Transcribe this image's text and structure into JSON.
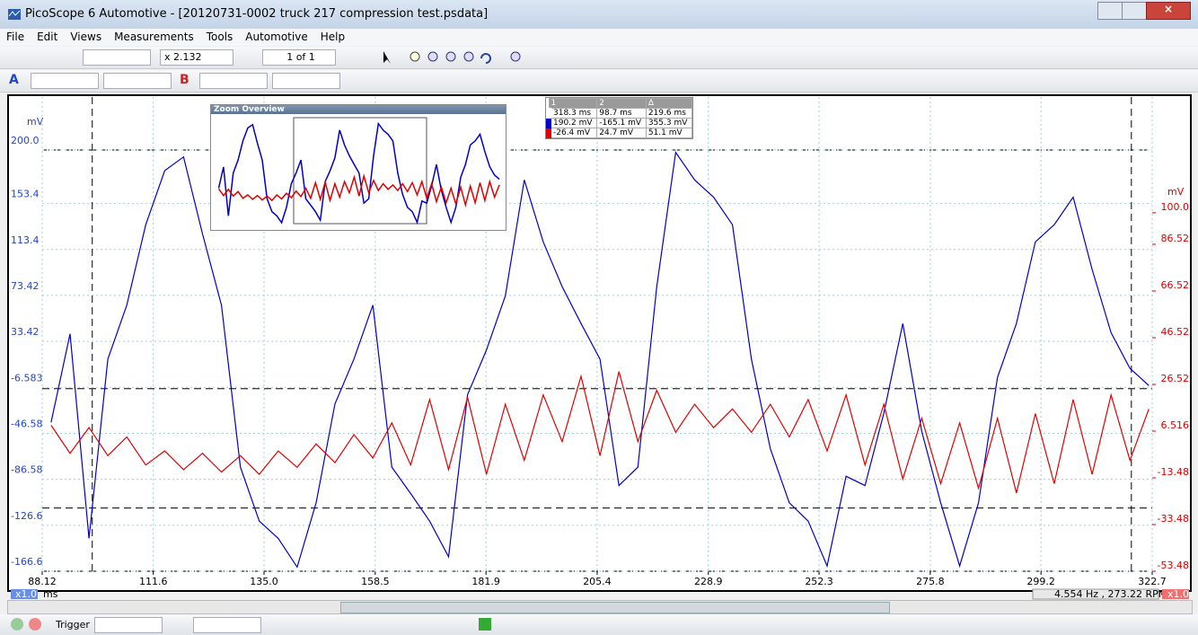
{
  "window": {
    "title": "PicoScope 6 Automotive - [20120731-0002 truck 217 compression test.psdata]"
  },
  "menu": [
    "File",
    "Edit",
    "Views",
    "Measurements",
    "Tools",
    "Automotive",
    "Help"
  ],
  "toolbar": {
    "zoom": "x 2.132",
    "page": "1 of 1"
  },
  "zoom_overview": {
    "title": "Zoom Overview"
  },
  "measurements": {
    "headers": [
      "1",
      "2",
      "Δ"
    ],
    "rows": [
      [
        "318.3 ms",
        "98.7 ms",
        "219.6 ms"
      ],
      [
        "190.2 mV",
        "-165.1 mV",
        "355.3 mV"
      ],
      [
        "-26.4 mV",
        "24.7 mV",
        "51.1 mV"
      ]
    ]
  },
  "status": {
    "frequency": "4.554 Hz , 273.22 RPM",
    "trigger": "Trigger"
  },
  "chart_data": {
    "type": "line",
    "xlabel": "ms",
    "ylabel": "mV",
    "y2label": "mV",
    "x_scale": "x1.0",
    "y2_scale": "x1.0",
    "xlim": [
      88.12,
      322.7
    ],
    "xticks": [
      88.12,
      111.6,
      {
        "value": 135,
        "label": "135.0"
      },
      158.5,
      181.9,
      205.4,
      228.9,
      252.3,
      275.8,
      299.2,
      322.7
    ],
    "ylim": [
      -166.6,
      200
    ],
    "yticks": [
      -166.6,
      -126.6,
      -86.58,
      -46.58,
      -6.583,
      33.42,
      73.42,
      113.4,
      153.4,
      {
        "value": 200,
        "label": "200.0"
      }
    ],
    "y2lim": [
      -53.48,
      126.9
    ],
    "y2ticks": [
      -53.48,
      -33.48,
      -13.48,
      6.516,
      26.52,
      46.52,
      66.52,
      86.52,
      {
        "value": 100,
        "label": "100.0"
      }
    ],
    "grid": true,
    "cursors": {
      "x": [
        98.7,
        318.3
      ],
      "y2": [
        24.7,
        -26.4
      ]
    },
    "x": [
      90,
      94,
      98,
      102,
      106,
      110,
      114,
      118,
      122,
      126,
      130,
      134,
      138,
      142,
      146,
      150,
      154,
      158,
      162,
      166,
      170,
      174,
      178,
      182,
      186,
      190,
      194,
      198,
      202,
      206,
      210,
      214,
      218,
      222,
      226,
      230,
      234,
      238,
      242,
      246,
      250,
      254,
      258,
      262,
      266,
      270,
      274,
      278,
      282,
      286,
      290,
      294,
      298,
      302,
      306,
      310,
      314,
      318,
      322
    ],
    "series": [
      {
        "name": "A",
        "color": "#0000cc",
        "values": [
          -37,
          40,
          -138,
          18,
          65,
          135,
          182,
          194,
          127,
          65,
          -76,
          -123,
          -138,
          -163,
          -107,
          -21,
          18,
          65,
          -76,
          -99,
          -123,
          -154,
          -13,
          26,
          73,
          174,
          120,
          81,
          49,
          18,
          -92,
          -76,
          81,
          198,
          174,
          159,
          135,
          18,
          -60,
          -107,
          -123,
          -162,
          -84,
          -92,
          -29,
          49,
          -45,
          -107,
          -162,
          -107,
          2,
          49,
          120,
          135,
          159,
          96,
          41,
          10,
          -5
        ]
      },
      {
        "name": "B",
        "color": "#e00000",
        "axis": "y2",
        "values": [
          9,
          -3,
          8,
          -4,
          4,
          -8,
          -2,
          -10,
          -3,
          -11,
          -4,
          -12,
          -2,
          -9,
          1,
          -7,
          5,
          -5,
          10,
          -8,
          20,
          -10,
          21,
          -12,
          18,
          -6,
          22,
          2,
          30,
          -4,
          32,
          2,
          24,
          6,
          18,
          8,
          16,
          6,
          18,
          4,
          20,
          -2,
          22,
          -8,
          18,
          -14,
          12,
          -16,
          10,
          -18,
          12,
          -20,
          14,
          -16,
          20,
          -12,
          22,
          -6,
          16
        ]
      }
    ]
  }
}
